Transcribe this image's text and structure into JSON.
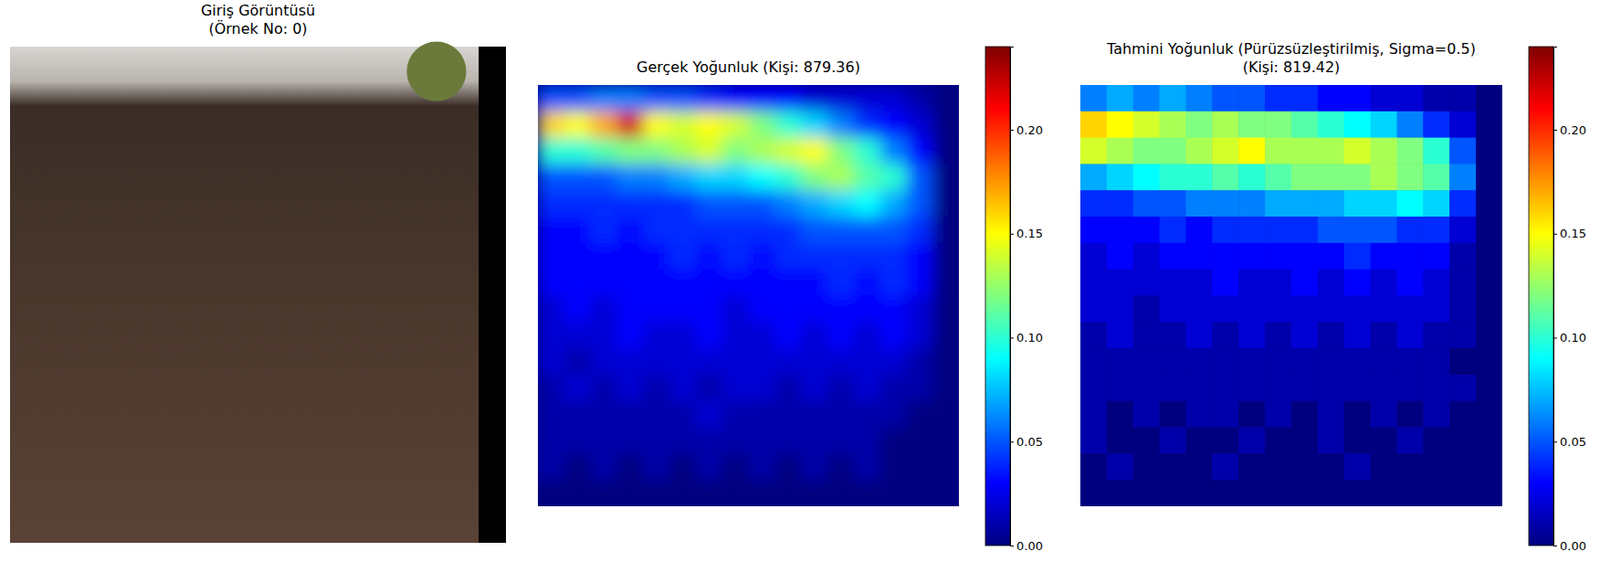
{
  "chart_data": [
    {
      "type": "image",
      "title": "Giriş Görüntüsü",
      "subtitle": "(Örnek No: 0)"
    },
    {
      "type": "heatmap",
      "title": "Gerçek Yoğunluk (Kişi: 879.36)",
      "tick_labels": false,
      "cells": [
        [
          0.05,
          0.05,
          0.06,
          0.06,
          0.05,
          0.05,
          0.04,
          0.03,
          0.03,
          0.03,
          0.02,
          0.02,
          0.02,
          0.02,
          0.01,
          0
        ],
        [
          0.16,
          0.15,
          0.17,
          0.22,
          0.15,
          0.14,
          0.15,
          0.14,
          0.12,
          0.1,
          0.08,
          0.06,
          0.04,
          0.03,
          0.02,
          0
        ],
        [
          0.1,
          0.1,
          0.11,
          0.12,
          0.12,
          0.13,
          0.14,
          0.12,
          0.13,
          0.14,
          0.15,
          0.12,
          0.1,
          0.06,
          0.03,
          0
        ],
        [
          0.05,
          0.05,
          0.05,
          0.06,
          0.06,
          0.07,
          0.08,
          0.08,
          0.09,
          0.1,
          0.12,
          0.13,
          0.11,
          0.1,
          0.05,
          0
        ],
        [
          0.04,
          0.04,
          0.04,
          0.04,
          0.04,
          0.04,
          0.05,
          0.05,
          0.05,
          0.06,
          0.07,
          0.08,
          0.09,
          0.07,
          0.05,
          0
        ],
        [
          0.03,
          0.03,
          0.04,
          0.03,
          0.04,
          0.04,
          0.04,
          0.04,
          0.04,
          0.04,
          0.05,
          0.05,
          0.05,
          0.05,
          0.04,
          0
        ],
        [
          0.03,
          0.03,
          0.03,
          0.03,
          0.03,
          0.04,
          0.03,
          0.04,
          0.03,
          0.04,
          0.04,
          0.04,
          0.04,
          0.04,
          0.03,
          0
        ],
        [
          0.03,
          0.03,
          0.03,
          0.03,
          0.03,
          0.03,
          0.03,
          0.03,
          0.03,
          0.03,
          0.03,
          0.04,
          0.03,
          0.04,
          0.03,
          0
        ],
        [
          0.02,
          0.03,
          0.02,
          0.03,
          0.03,
          0.03,
          0.03,
          0.02,
          0.03,
          0.03,
          0.03,
          0.03,
          0.03,
          0.03,
          0.02,
          0
        ],
        [
          0.02,
          0.02,
          0.02,
          0.03,
          0.02,
          0.02,
          0.03,
          0.02,
          0.02,
          0.03,
          0.02,
          0.03,
          0.02,
          0.03,
          0.02,
          0
        ],
        [
          0.02,
          0.01,
          0.02,
          0.02,
          0.02,
          0.02,
          0.02,
          0.02,
          0.02,
          0.02,
          0.02,
          0.02,
          0.02,
          0.02,
          0.01,
          0
        ],
        [
          0.01,
          0.02,
          0.01,
          0.02,
          0.01,
          0.02,
          0.01,
          0.02,
          0.02,
          0.01,
          0.02,
          0.01,
          0.02,
          0.01,
          0.01,
          0
        ],
        [
          0.01,
          0.01,
          0.01,
          0.01,
          0.01,
          0.01,
          0.02,
          0.01,
          0.01,
          0.01,
          0.01,
          0.01,
          0.01,
          0.01,
          0,
          0
        ],
        [
          0.01,
          0.01,
          0.01,
          0.01,
          0.01,
          0.01,
          0.01,
          0.01,
          0.01,
          0.01,
          0.01,
          0.01,
          0.01,
          0,
          0,
          0
        ],
        [
          0.01,
          0,
          0.01,
          0,
          0.01,
          0,
          0.01,
          0,
          0.01,
          0,
          0.01,
          0,
          0.01,
          0,
          0,
          0
        ],
        [
          0,
          0,
          0,
          0,
          0,
          0,
          0,
          0,
          0,
          0,
          0,
          0,
          0,
          0,
          0,
          0
        ]
      ],
      "colorbar": {
        "range": [
          0,
          0.24
        ],
        "ticks": [
          {
            "value": 0,
            "label": "0.00"
          },
          {
            "value": 0.05,
            "label": "0.05"
          },
          {
            "value": 0.1,
            "label": "0.10"
          },
          {
            "value": 0.15,
            "label": "0.15"
          },
          {
            "value": 0.2,
            "label": "0.20"
          }
        ]
      }
    },
    {
      "type": "heatmap",
      "title": "Tahmini Yoğunluk (Pürüzsüzleştirilmiş, Sigma=0.5)",
      "subtitle": "(Kişi: 819.42)",
      "tick_labels": false,
      "cells": [
        [
          0.06,
          0.07,
          0.06,
          0.07,
          0.06,
          0.05,
          0.05,
          0.04,
          0.04,
          0.03,
          0.03,
          0.02,
          0.02,
          0.01,
          0.01,
          0
        ],
        [
          0.16,
          0.15,
          0.14,
          0.13,
          0.12,
          0.13,
          0.12,
          0.12,
          0.11,
          0.1,
          0.09,
          0.08,
          0.06,
          0.04,
          0.02,
          0
        ],
        [
          0.14,
          0.13,
          0.12,
          0.12,
          0.13,
          0.14,
          0.15,
          0.13,
          0.13,
          0.13,
          0.14,
          0.13,
          0.12,
          0.1,
          0.05,
          0
        ],
        [
          0.07,
          0.08,
          0.09,
          0.1,
          0.1,
          0.11,
          0.1,
          0.11,
          0.12,
          0.12,
          0.12,
          0.13,
          0.12,
          0.11,
          0.06,
          0
        ],
        [
          0.04,
          0.04,
          0.05,
          0.05,
          0.06,
          0.06,
          0.06,
          0.07,
          0.07,
          0.07,
          0.08,
          0.08,
          0.09,
          0.08,
          0.04,
          0
        ],
        [
          0.03,
          0.03,
          0.03,
          0.04,
          0.03,
          0.04,
          0.04,
          0.04,
          0.04,
          0.05,
          0.05,
          0.05,
          0.04,
          0.04,
          0.02,
          0
        ],
        [
          0.02,
          0.03,
          0.02,
          0.03,
          0.03,
          0.03,
          0.03,
          0.03,
          0.03,
          0.03,
          0.04,
          0.03,
          0.03,
          0.03,
          0.01,
          0
        ],
        [
          0.02,
          0.02,
          0.02,
          0.02,
          0.02,
          0.03,
          0.02,
          0.02,
          0.03,
          0.02,
          0.03,
          0.02,
          0.03,
          0.02,
          0.01,
          0
        ],
        [
          0.02,
          0.02,
          0.01,
          0.02,
          0.02,
          0.02,
          0.02,
          0.02,
          0.02,
          0.02,
          0.02,
          0.02,
          0.02,
          0.02,
          0.01,
          0
        ],
        [
          0.01,
          0.02,
          0.01,
          0.01,
          0.02,
          0.01,
          0.02,
          0.01,
          0.02,
          0.01,
          0.02,
          0.01,
          0.02,
          0.01,
          0.01,
          0
        ],
        [
          0.01,
          0.01,
          0.01,
          0.01,
          0.01,
          0.01,
          0.01,
          0.01,
          0.01,
          0.01,
          0.01,
          0.01,
          0.01,
          0.01,
          0,
          0
        ],
        [
          0.01,
          0.01,
          0.01,
          0.01,
          0.01,
          0.01,
          0.01,
          0.01,
          0.01,
          0.01,
          0.01,
          0.01,
          0.01,
          0.01,
          0.01,
          0
        ],
        [
          0.01,
          0,
          0.01,
          0,
          0.01,
          0.01,
          0,
          0.01,
          0,
          0.01,
          0,
          0.01,
          0,
          0.01,
          0,
          0
        ],
        [
          0.01,
          0,
          0,
          0.01,
          0,
          0,
          0.01,
          0,
          0,
          0.01,
          0,
          0,
          0.01,
          0,
          0,
          0
        ],
        [
          0,
          0.01,
          0,
          0,
          0,
          0.01,
          0,
          0,
          0,
          0,
          0.01,
          0,
          0,
          0,
          0,
          0
        ],
        [
          0,
          0,
          0,
          0,
          0,
          0,
          0,
          0,
          0,
          0,
          0,
          0,
          0,
          0,
          0,
          0
        ]
      ],
      "colorbar": {
        "range": [
          0,
          0.24
        ],
        "ticks": [
          {
            "value": 0,
            "label": "0.00"
          },
          {
            "value": 0.05,
            "label": "0.05"
          },
          {
            "value": 0.1,
            "label": "0.10"
          },
          {
            "value": 0.15,
            "label": "0.15"
          },
          {
            "value": 0.2,
            "label": "0.20"
          }
        ]
      }
    }
  ]
}
